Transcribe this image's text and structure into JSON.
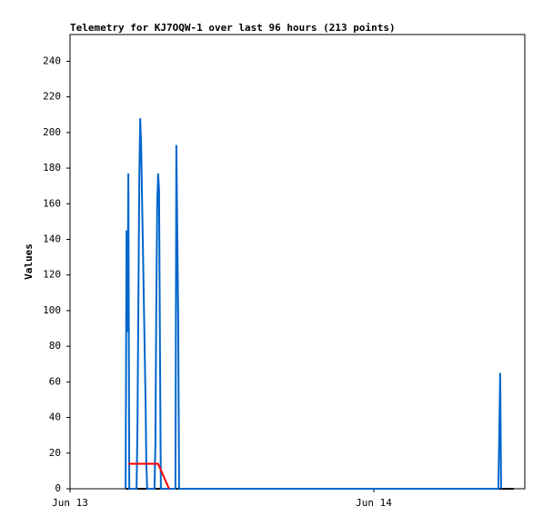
{
  "chart_data": {
    "type": "line",
    "title": "Telemetry for KJ7OQW-1 over last 96 hours (213 points)",
    "y_label": "Values",
    "xlim": [
      0,
      1.497
    ],
    "xticks": [
      {
        "value": 0,
        "label": "Jun 13"
      },
      {
        "value": 1,
        "label": "Jun 14"
      }
    ],
    "ylim": [
      0,
      255
    ],
    "yticks": [
      0,
      20,
      40,
      60,
      80,
      100,
      120,
      140,
      160,
      180,
      200,
      220,
      240
    ],
    "grid": false,
    "series": [
      {
        "color": "#000000",
        "x": [
          0.183,
          1.461
        ],
        "values": [
          0,
          0
        ]
      },
      {
        "color": "#0066cc",
        "x": [
          0.183,
          0.186,
          0.189,
          0.192,
          0.195,
          0.219,
          0.222,
          0.225,
          0.228,
          0.231,
          0.234,
          0.237,
          0.24,
          0.243,
          0.246,
          0.249,
          0.251,
          0.254,
          0.278,
          0.281,
          0.284,
          0.287,
          0.29,
          0.293,
          0.296,
          0.299,
          0.347,
          0.35,
          0.356,
          0.359,
          1.41,
          1.413,
          1.416,
          1.419
        ],
        "values": [
          0,
          145,
          88,
          177,
          0,
          0,
          35,
          105,
          174,
          208,
          193,
          163,
          135,
          105,
          75,
          45,
          15,
          0,
          0,
          25,
          105,
          160,
          177,
          168,
          80,
          0,
          0,
          193,
          97,
          0,
          0,
          32,
          65,
          0
        ]
      },
      {
        "color": "#ff0000",
        "x": [
          0.192,
          0.29,
          0.326
        ],
        "values": [
          14,
          14,
          0
        ]
      }
    ]
  }
}
